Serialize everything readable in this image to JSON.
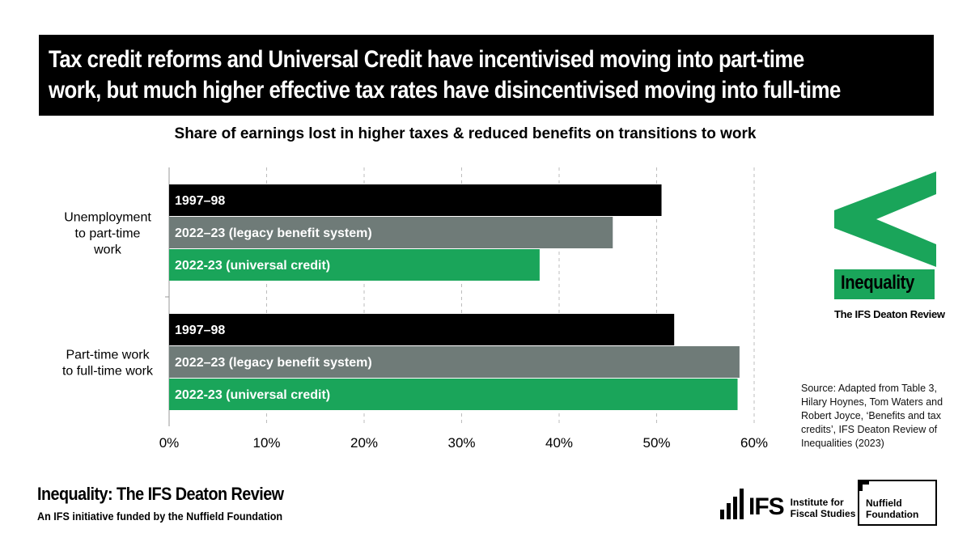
{
  "banner": {
    "line1": "Tax credit reforms and Universal Credit have incentivised moving into part-time",
    "line2": "work, but much higher effective tax rates have disincentivised moving into full-time"
  },
  "colors": {
    "series_1997": "#000000",
    "series_legacy": "#6f7b78",
    "series_uc": "#1aa55a",
    "brand_green": "#1aa55a"
  },
  "chart_data": {
    "type": "bar",
    "orientation": "horizontal",
    "title": "Share of earnings lost in higher taxes & reduced benefits on transitions to work",
    "categories": [
      [
        "Unemployment",
        "to part-time",
        "work"
      ],
      [
        "Part-time work",
        "to full-time work"
      ]
    ],
    "series": [
      {
        "name": "1997–98",
        "values": [
          50.5,
          51.8
        ]
      },
      {
        "name": "2022–23 (legacy benefit system)",
        "values": [
          45.5,
          58.5
        ]
      },
      {
        "name": "2022-23 (universal credit)",
        "values": [
          38.0,
          58.3
        ]
      }
    ],
    "xlim": [
      0,
      60
    ],
    "xticks": [
      "0%",
      "10%",
      "20%",
      "30%",
      "40%",
      "50%",
      "60%"
    ],
    "grid": "vertical-dashed",
    "labels": "inside-bars"
  },
  "source": {
    "lines": [
      "Source: Adapted from Table 3,",
      "Hilary Hoynes, Tom Waters and",
      "Robert Joyce, ‘Benefits and tax",
      "credits’, IFS Deaton Review of",
      "Inequalities (2023)"
    ]
  },
  "logo": {
    "word": "Inequality",
    "sub": "The IFS Deaton Review"
  },
  "footer": {
    "title": "Inequality: The IFS Deaton Review",
    "subtitle": "An IFS initiative funded by the Nuffield Foundation",
    "ifs_word": "IFS",
    "ifs_name_1": "Institute for",
    "ifs_name_2": "Fiscal Studies",
    "nuffield_1": "Nuffield",
    "nuffield_2": "Foundation"
  }
}
